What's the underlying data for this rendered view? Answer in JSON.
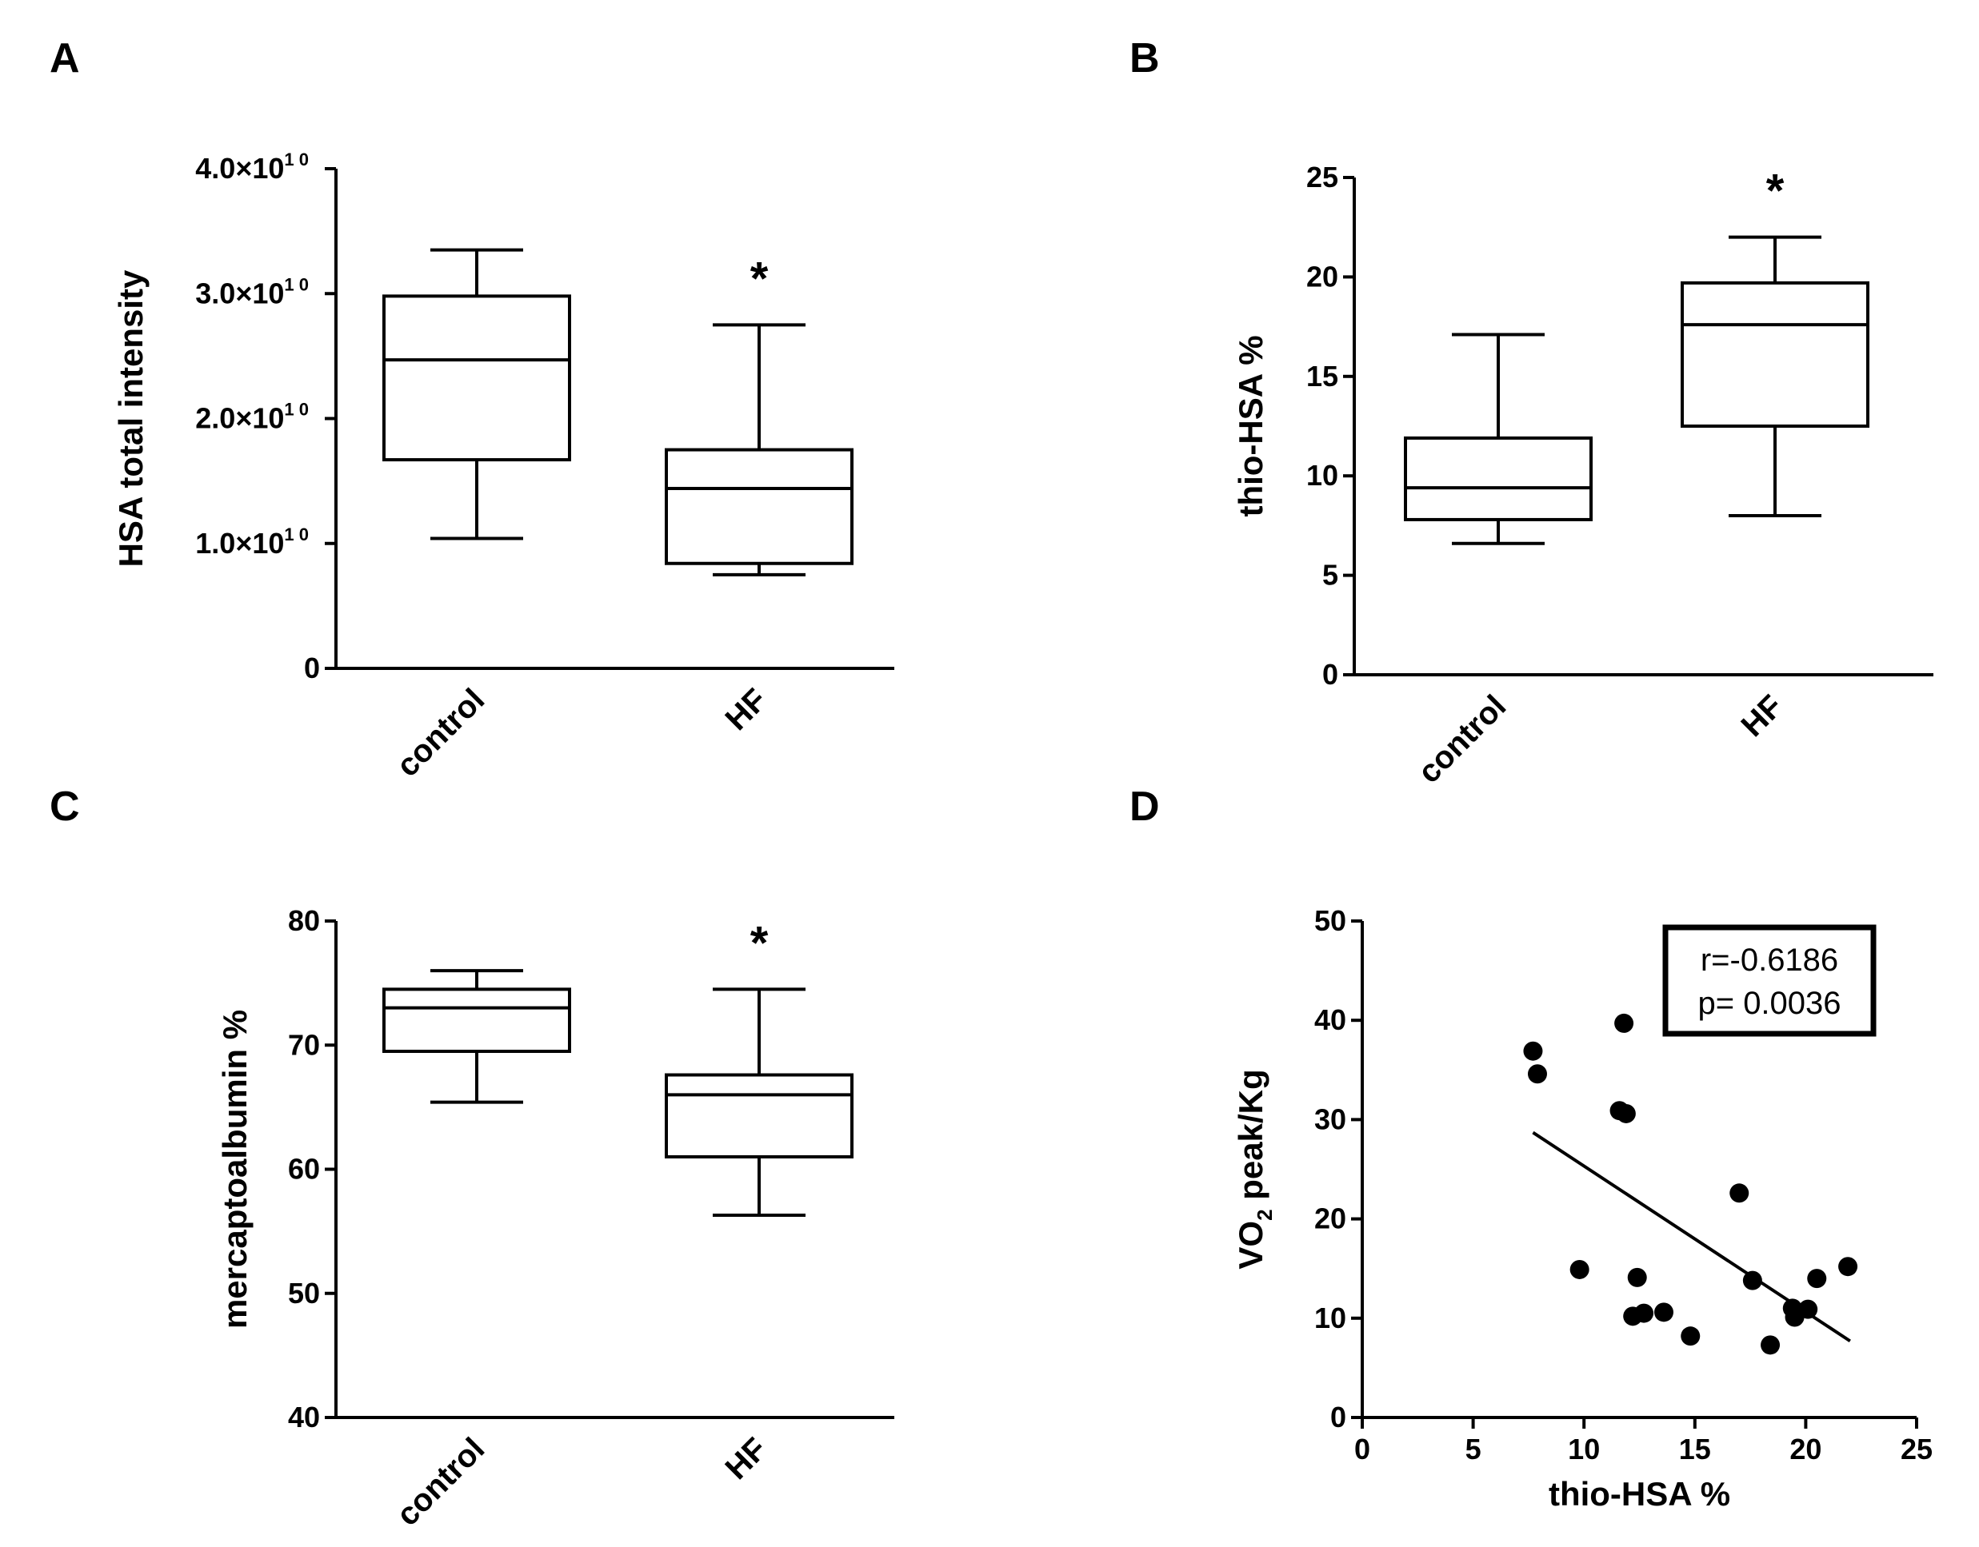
{
  "chart_data": [
    {
      "panel": "A",
      "type": "box",
      "ylabel": "HSA total intensity",
      "ylim": [
        0,
        40000000000
      ],
      "yticks": [
        {
          "value": 0,
          "base": "0",
          "exp": ""
        },
        {
          "value": 10000000000,
          "base": "1.0×10",
          "exp": "1 0"
        },
        {
          "value": 20000000000,
          "base": "2.0×10",
          "exp": "1 0"
        },
        {
          "value": 30000000000,
          "base": "3.0×10",
          "exp": "1 0"
        },
        {
          "value": 40000000000,
          "base": "4.0×10",
          "exp": "1 0"
        }
      ],
      "categories": [
        "control",
        "HF"
      ],
      "boxes": [
        {
          "min": 10400000000,
          "q1": 16700000000,
          "median": 24700000000,
          "q3": 29800000000,
          "max": 33500000000,
          "significance": ""
        },
        {
          "min": 7500000000,
          "q1": 8400000000,
          "median": 14400000000,
          "q3": 17500000000,
          "max": 27500000000,
          "significance": "*"
        }
      ]
    },
    {
      "panel": "B",
      "type": "box",
      "ylabel": "thio-HSA %",
      "ylim": [
        0,
        25
      ],
      "yticks": [
        {
          "value": 0,
          "base": "0",
          "exp": ""
        },
        {
          "value": 5,
          "base": "5",
          "exp": ""
        },
        {
          "value": 10,
          "base": "10",
          "exp": ""
        },
        {
          "value": 15,
          "base": "15",
          "exp": ""
        },
        {
          "value": 20,
          "base": "20",
          "exp": ""
        },
        {
          "value": 25,
          "base": "25",
          "exp": ""
        }
      ],
      "categories": [
        "control",
        "HF"
      ],
      "boxes": [
        {
          "min": 6.6,
          "q1": 7.8,
          "median": 9.4,
          "q3": 11.9,
          "max": 17.1,
          "significance": ""
        },
        {
          "min": 8.0,
          "q1": 12.5,
          "median": 17.6,
          "q3": 19.7,
          "max": 22.0,
          "significance": "*"
        }
      ]
    },
    {
      "panel": "C",
      "type": "box",
      "ylabel": "mercaptoalbumin %",
      "ylim": [
        40,
        80
      ],
      "yticks": [
        {
          "value": 40,
          "base": "40",
          "exp": ""
        },
        {
          "value": 50,
          "base": "50",
          "exp": ""
        },
        {
          "value": 60,
          "base": "60",
          "exp": ""
        },
        {
          "value": 70,
          "base": "70",
          "exp": ""
        },
        {
          "value": 80,
          "base": "80",
          "exp": ""
        }
      ],
      "categories": [
        "control",
        "HF"
      ],
      "boxes": [
        {
          "min": 65.4,
          "q1": 69.5,
          "median": 73.0,
          "q3": 74.5,
          "max": 76.0,
          "significance": ""
        },
        {
          "min": 56.3,
          "q1": 61.0,
          "median": 66.0,
          "q3": 67.6,
          "max": 74.5,
          "significance": "*"
        }
      ]
    },
    {
      "panel": "D",
      "type": "scatter",
      "xlabel": "thio-HSA %",
      "ylabel_main": "VO",
      "ylabel_sub": "2",
      "ylabel_rest": " peak/Kg",
      "xlim": [
        0,
        25
      ],
      "ylim": [
        0,
        50
      ],
      "xticks": [
        0,
        5,
        10,
        15,
        20,
        25
      ],
      "yticks": [
        0,
        10,
        20,
        30,
        40,
        50
      ],
      "points": [
        {
          "x": 7.7,
          "y": 36.9
        },
        {
          "x": 7.9,
          "y": 34.6
        },
        {
          "x": 9.8,
          "y": 14.9
        },
        {
          "x": 11.6,
          "y": 30.9
        },
        {
          "x": 11.8,
          "y": 39.7
        },
        {
          "x": 11.9,
          "y": 30.6
        },
        {
          "x": 12.2,
          "y": 10.2
        },
        {
          "x": 12.4,
          "y": 14.1
        },
        {
          "x": 12.7,
          "y": 10.5
        },
        {
          "x": 13.6,
          "y": 10.6
        },
        {
          "x": 14.8,
          "y": 8.2
        },
        {
          "x": 17.0,
          "y": 22.6
        },
        {
          "x": 17.6,
          "y": 13.8
        },
        {
          "x": 18.4,
          "y": 7.3
        },
        {
          "x": 19.4,
          "y": 11.0
        },
        {
          "x": 19.5,
          "y": 10.1
        },
        {
          "x": 20.1,
          "y": 10.9
        },
        {
          "x": 20.5,
          "y": 14.0
        },
        {
          "x": 21.9,
          "y": 15.2
        }
      ],
      "fit_line": {
        "x1": 7.7,
        "y1": 28.7,
        "x2": 22.0,
        "y2": 7.7
      },
      "stats": {
        "r": "r=-0.6186",
        "p": "p= 0.0036"
      }
    }
  ]
}
